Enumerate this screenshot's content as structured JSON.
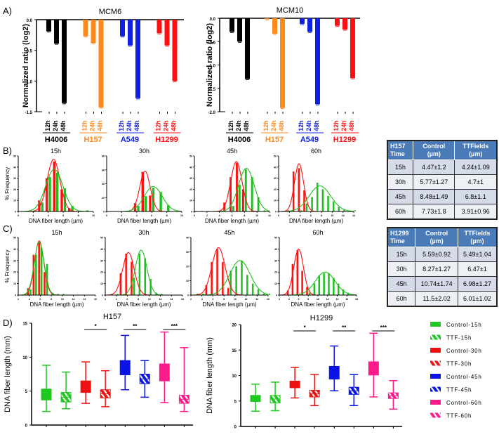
{
  "panel_labels": {
    "a": "A)",
    "b": "B)",
    "c": "C)",
    "d": "D)"
  },
  "colors": {
    "H4006": "#000000",
    "H157": "#ff8a1c",
    "A549": "#1020e0",
    "H1299": "#ff1010",
    "control": "#ff1010",
    "ttf": "#1ec01e",
    "box_15h": "#1ec81e",
    "box_30h": "#ee1111",
    "box_45h": "#0a14e6",
    "box_60h": "#ff1a8c"
  },
  "chart_data": [
    {
      "id": "A-MCM6",
      "type": "bar",
      "title": "MCM6",
      "ylabel": "Normalized ratio (log2)",
      "ylim": [
        -1.5,
        0
      ],
      "yticks": [
        "0.0",
        "-0.5",
        "-1.0",
        "-1.5"
      ],
      "groups": [
        "H4006",
        "H157",
        "A549",
        "H1299"
      ],
      "categories": [
        "12h",
        "24h",
        "48h"
      ],
      "series": [
        {
          "name": "H4006",
          "values": [
            -0.19,
            -0.39,
            -1.36
          ]
        },
        {
          "name": "H157",
          "values": [
            -0.27,
            -0.38,
            -1.43
          ]
        },
        {
          "name": "A549",
          "values": [
            -0.27,
            -0.42,
            -1.28
          ]
        },
        {
          "name": "H1299",
          "values": [
            -0.22,
            -0.42,
            -1.0
          ]
        }
      ]
    },
    {
      "id": "A-MCM10",
      "type": "bar",
      "title": "MCM10",
      "ylabel": "Normalized ratio (log2)",
      "ylim": [
        -2.0,
        0
      ],
      "yticks": [
        "0.0",
        "-0.5",
        "-1.0",
        "-1.5",
        "-2.0"
      ],
      "groups": [
        "H4006",
        "H157",
        "A549",
        "H1299"
      ],
      "categories": [
        "12h",
        "24h",
        "48h"
      ],
      "series": [
        {
          "name": "H4006",
          "values": [
            -0.29,
            -0.5,
            -1.3
          ]
        },
        {
          "name": "H157",
          "values": [
            -0.02,
            -0.33,
            -1.92
          ]
        },
        {
          "name": "A549",
          "values": [
            -0.12,
            -0.29,
            -1.84
          ]
        },
        {
          "name": "H1299",
          "values": [
            -0.16,
            -0.24,
            -1.28
          ]
        }
      ]
    },
    {
      "id": "B-histograms",
      "type": "bar",
      "cell_line": "H157",
      "xlabel": "DNA fiber length (µm)",
      "ylabel": "% Frequency",
      "panels": [
        {
          "title": "15h",
          "xlim": [
            0,
            10
          ],
          "xticks": [
            "0",
            "2",
            "4",
            "6",
            "8",
            "10"
          ],
          "ylim": [
            0,
            50
          ],
          "yticks": [
            "0",
            "10",
            "20",
            "30",
            "40",
            "50"
          ],
          "control": {
            "x": [
              3,
              4,
              5,
              6,
              7
            ],
            "values": [
              10,
              30,
              45,
              20,
              3
            ],
            "fit_mean": 4.7,
            "fit_sd": 0.85,
            "fit_peak": 47
          },
          "ttf": {
            "x": [
              2,
              3,
              4,
              5,
              6,
              7,
              9
            ],
            "values": [
              1,
              8,
              31,
              35,
              21,
              5,
              1
            ],
            "fit_mean": 4.8,
            "fit_sd": 1.15,
            "fit_peak": 38
          }
        },
        {
          "title": "30h",
          "xlim": [
            0,
            10
          ],
          "xticks": [
            "0",
            "2",
            "4",
            "6",
            "8",
            "10"
          ],
          "ylim": [
            0,
            80
          ],
          "yticks": [
            "0",
            "20",
            "40",
            "60",
            "80"
          ],
          "control": {
            "x": [
              4,
              5,
              6
            ],
            "values": [
              12,
              57,
              23
            ],
            "fit_mean": 5.1,
            "fit_sd": 0.7,
            "fit_peak": 58
          },
          "ttf": {
            "x": [
              4,
              5,
              6,
              7,
              8
            ],
            "values": [
              8,
              22,
              34,
              28,
              9
            ],
            "fit_mean": 6.2,
            "fit_sd": 1.2,
            "fit_peak": 36
          }
        },
        {
          "title": "45h",
          "xlim": [
            0,
            12
          ],
          "xticks": [
            "0",
            "2",
            "4",
            "6",
            "8",
            "10",
            "12"
          ],
          "ylim": [
            0,
            50
          ],
          "yticks": [
            "0",
            "10",
            "20",
            "30",
            "40",
            "50"
          ],
          "control": {
            "x": [
              5,
              6,
              7,
              8
            ],
            "values": [
              8,
              31,
              44,
              20
            ],
            "fit_mean": 6.7,
            "fit_sd": 0.9,
            "fit_peak": 45
          },
          "ttf": {
            "x": [
              0,
              1,
              2,
              3,
              4,
              6,
              7,
              8,
              9,
              10,
              11
            ],
            "values": [
              0.5,
              0.5,
              0.5,
              0.5,
              0.5,
              5,
              24,
              38,
              31,
              13,
              1
            ],
            "fit_mean": 8.3,
            "fit_sd": 1.25,
            "fit_peak": 39
          }
        },
        {
          "title": "60h",
          "xlim": [
            0,
            14
          ],
          "xticks": [
            "0",
            "2",
            "4",
            "6",
            "8",
            "10",
            "12",
            "14"
          ],
          "ylim": [
            0,
            50
          ],
          "yticks": [
            "0",
            "10",
            "20",
            "30",
            "40",
            "50"
          ],
          "control": {
            "x": [
              2,
              3,
              4,
              5
            ],
            "values": [
              1,
              36,
              39,
              19
            ],
            "fit_mean": 3.8,
            "fit_sd": 0.85,
            "fit_peak": 43
          },
          "ttf": {
            "x": [
              4,
              5,
              6,
              7,
              8,
              9,
              10,
              11,
              12,
              13,
              14
            ],
            "values": [
              1,
              7,
              13,
              26,
              20,
              14,
              9,
              4,
              2,
              1,
              1
            ],
            "fit_mean": 7.7,
            "fit_sd": 2.0,
            "fit_peak": 23
          }
        }
      ]
    },
    {
      "id": "C-histograms",
      "type": "bar",
      "cell_line": "H1299",
      "xlabel": "DNA fiber length (µm)",
      "ylabel": "% Frequency",
      "panels": [
        {
          "title": "15h",
          "xlim": [
            2,
            16
          ],
          "xticks": [
            "2",
            "4",
            "6",
            "8",
            "10",
            "12",
            "14",
            "16"
          ],
          "ylim": [
            0,
            50
          ],
          "yticks": [
            "0",
            "10",
            "20",
            "30",
            "40",
            "50"
          ],
          "control": {
            "x": [
              4,
              5,
              6,
              7
            ],
            "values": [
              6,
              35,
              46,
              20
            ],
            "fit_mean": 5.8,
            "fit_sd": 0.85,
            "fit_peak": 47
          },
          "ttf": {
            "x": [
              3,
              4,
              5,
              6,
              7,
              8,
              9,
              10
            ],
            "values": [
              1,
              5,
              35,
              41,
              27,
              2,
              1,
              1
            ],
            "fit_mean": 5.8,
            "fit_sd": 0.9,
            "fit_peak": 46
          }
        },
        {
          "title": "30h",
          "xlim": [
            2,
            16
          ],
          "xticks": [
            "2",
            "4",
            "6",
            "8",
            "10",
            "12",
            "14",
            "16"
          ],
          "ylim": [
            0,
            50
          ],
          "yticks": [
            "0",
            "10",
            "20",
            "30",
            "40",
            "50"
          ],
          "control": {
            "x": [
              5,
              6,
              7
            ],
            "values": [
              19,
              36,
              29
            ],
            "fit_mean": 6.2,
            "fit_sd": 1.05,
            "fit_peak": 37
          },
          "ttf": {
            "x": [
              3,
              4,
              7,
              8,
              9,
              10,
              11,
              12
            ],
            "values": [
              1,
              1,
              15,
              36,
              32,
              14,
              2,
              1
            ],
            "fit_mean": 8.5,
            "fit_sd": 1.05,
            "fit_peak": 39
          }
        },
        {
          "title": "45h",
          "xlim": [
            2,
            16
          ],
          "xticks": [
            "2",
            "4",
            "6",
            "8",
            "10",
            "12",
            "14",
            "16"
          ],
          "ylim": [
            0,
            40
          ],
          "yticks": [
            "0",
            "10",
            "20",
            "30",
            "40"
          ],
          "control": {
            "x": [
              5,
              6,
              7,
              8,
              9
            ],
            "values": [
              7,
              23,
              32,
              23,
              5
            ],
            "fit_mean": 7.0,
            "fit_sd": 1.2,
            "fit_peak": 33
          },
          "ttf": {
            "x": [
              3,
              4,
              9,
              10,
              11,
              12,
              13,
              14,
              15,
              16
            ],
            "values": [
              1,
              1,
              17,
              20,
              24,
              14,
              8,
              4,
              1,
              1
            ],
            "fit_mean": 10.9,
            "fit_sd": 1.85,
            "fit_peak": 24
          }
        },
        {
          "title": "60h",
          "xlim": [
            2,
            18
          ],
          "xticks": [
            "2",
            "4",
            "6",
            "8",
            "10",
            "12",
            "14",
            "16",
            "18"
          ],
          "ylim": [
            0,
            50
          ],
          "yticks": [
            "0",
            "10",
            "20",
            "30",
            "40",
            "50"
          ],
          "control": {
            "x": [
              4,
              5,
              6,
              7,
              8
            ],
            "values": [
              4,
              27,
              39,
              21,
              7
            ],
            "fit_mean": 6.0,
            "fit_sd": 1.0,
            "fit_peak": 40
          },
          "ttf": {
            "x": [
              8,
              9,
              10,
              11,
              12,
              13,
              14,
              15,
              16
            ],
            "values": [
              2,
              10,
              17,
              19,
              19,
              15,
              10,
              5,
              2
            ],
            "fit_mean": 11.5,
            "fit_sd": 2.05,
            "fit_peak": 20
          }
        }
      ]
    },
    {
      "id": "D-H157",
      "type": "box",
      "title": "H157",
      "ylabel": "DNA fiber length (mm)",
      "ylim": [
        0,
        15
      ],
      "yticks": [
        "0",
        "5",
        "10",
        "15"
      ],
      "boxes": [
        {
          "name": "Control-15h",
          "min": 2.0,
          "q1": 3.7,
          "median": 4.5,
          "q3": 5.3,
          "max": 8.8
        },
        {
          "name": "TTF-15h",
          "min": 2.4,
          "q1": 3.4,
          "median": 4.1,
          "q3": 4.8,
          "max": 7.8
        },
        {
          "name": "Control-30h",
          "min": 3.2,
          "q1": 4.8,
          "median": 5.7,
          "q3": 6.5,
          "max": 9.3
        },
        {
          "name": "TTF-30h",
          "min": 2.7,
          "q1": 4.0,
          "median": 4.6,
          "q3": 5.2,
          "max": 8.0
        },
        {
          "name": "Control-45h",
          "min": 5.2,
          "q1": 7.4,
          "median": 8.5,
          "q3": 9.5,
          "max": 13.2
        },
        {
          "name": "TTF-45h",
          "min": 4.1,
          "q1": 6.1,
          "median": 6.8,
          "q3": 7.5,
          "max": 9.5
        },
        {
          "name": "Control-60h",
          "min": 3.3,
          "q1": 6.5,
          "median": 7.7,
          "q3": 9.0,
          "max": 13.7
        },
        {
          "name": "TTF-60h",
          "min": 2.0,
          "q1": 3.2,
          "median": 3.8,
          "q3": 4.4,
          "max": 11.4
        }
      ],
      "significance": [
        {
          "pair": [
            "Control-30h",
            "TTF-30h"
          ],
          "label": "*"
        },
        {
          "pair": [
            "Control-45h",
            "TTF-45h"
          ],
          "label": "**"
        },
        {
          "pair": [
            "Control-60h",
            "TTF-60h"
          ],
          "label": "***"
        }
      ]
    },
    {
      "id": "D-H1299",
      "type": "box",
      "title": "H1299",
      "ylabel": "DNA fiber length (mm)",
      "ylim": [
        0,
        20
      ],
      "yticks": [
        "0",
        "5",
        "10",
        "15",
        "20"
      ],
      "boxes": [
        {
          "name": "Control-15h",
          "min": 3.0,
          "q1": 4.9,
          "median": 5.5,
          "q3": 6.1,
          "max": 8.3
        },
        {
          "name": "TTF-15h",
          "min": 3.1,
          "q1": 4.6,
          "median": 5.4,
          "q3": 6.1,
          "max": 8.7
        },
        {
          "name": "Control-30h",
          "min": 5.6,
          "q1": 7.6,
          "median": 8.3,
          "q3": 8.9,
          "max": 11.6
        },
        {
          "name": "TTF-30h",
          "min": 4.1,
          "q1": 5.8,
          "median": 6.4,
          "q3": 7.1,
          "max": 10.2
        },
        {
          "name": "Control-45h",
          "min": 7.0,
          "q1": 9.3,
          "median": 10.7,
          "q3": 11.8,
          "max": 15.8
        },
        {
          "name": "TTF-45h",
          "min": 4.1,
          "q1": 6.3,
          "median": 7.0,
          "q3": 7.7,
          "max": 10.2
        },
        {
          "name": "Control-60h",
          "min": 5.8,
          "q1": 10.1,
          "median": 11.5,
          "q3": 12.7,
          "max": 18.3
        },
        {
          "name": "TTF-60h",
          "min": 3.4,
          "q1": 5.5,
          "median": 6.0,
          "q3": 6.6,
          "max": 9.0
        }
      ],
      "significance": [
        {
          "pair": [
            "Control-30h",
            "TTF-30h"
          ],
          "label": "*"
        },
        {
          "pair": [
            "Control-45h",
            "TTF-45h"
          ],
          "label": "**"
        },
        {
          "pair": [
            "Control-60h",
            "TTF-60h"
          ],
          "label": "***"
        }
      ]
    }
  ],
  "legend": [
    {
      "label": "Control-15h",
      "color": "#1ec81e",
      "hatched": false
    },
    {
      "label": "TTF-15h",
      "color": "#1ec81e",
      "hatched": true
    },
    {
      "label": "Control-30h",
      "color": "#ee1111",
      "hatched": false
    },
    {
      "label": "TTF-30h",
      "color": "#ee1111",
      "hatched": true
    },
    {
      "label": "Control-45h",
      "color": "#0a14e6",
      "hatched": false
    },
    {
      "label": "TTF-45h",
      "color": "#0a14e6",
      "hatched": true
    },
    {
      "label": "Control-60h",
      "color": "#ff1a8c",
      "hatched": false
    },
    {
      "label": "TTF-60h",
      "color": "#ff1a8c",
      "hatched": true
    }
  ],
  "tables": [
    {
      "id": "table-h157",
      "headers": [
        "H157\nTime",
        "Control\n(µm)",
        "TTFields\n(µm)"
      ],
      "rows": [
        [
          "15h",
          "4.47±1.2",
          "4.24±1.09"
        ],
        [
          "30h",
          "5.77±1.27",
          "4.7±1"
        ],
        [
          "45h",
          "8.48±1.49",
          "6.8±1.1"
        ],
        [
          "60h",
          "7.73±1.8",
          "3.91±0.96"
        ]
      ]
    },
    {
      "id": "table-h1299",
      "headers": [
        "H1299\nTime",
        "Control\n(µm)",
        "TTFields\n(µm)"
      ],
      "rows": [
        [
          "15h",
          "5.59±0.92",
          "5.49±1.04"
        ],
        [
          "30h",
          "8.27±1.27",
          "6.47±1"
        ],
        [
          "45h",
          "10.74±1.74",
          "6.98±1.27"
        ],
        [
          "60h",
          "11.5±2.02",
          "6.01±1.02"
        ]
      ]
    }
  ]
}
